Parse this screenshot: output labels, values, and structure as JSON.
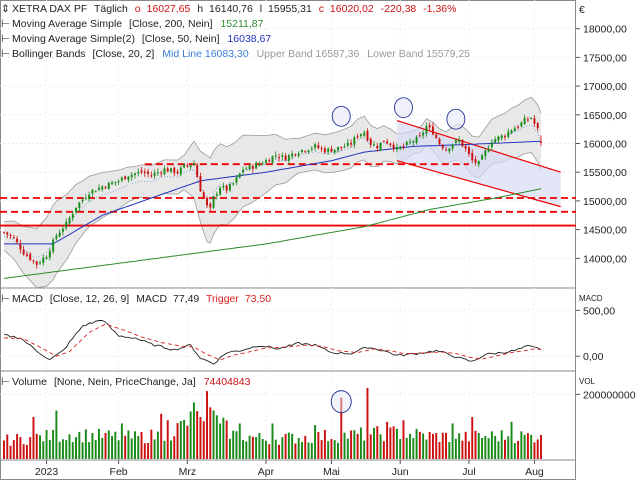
{
  "header": {
    "currency": "€",
    "price": {
      "prefix": "XETRA DAX PF",
      "period": "Täglich",
      "o_label": "o",
      "o": "16027,65",
      "h_label": "h",
      "h": "16140,76",
      "l_label": "l",
      "l": "15955,31",
      "c_label": "c",
      "c": "16020,02",
      "change": "-220,38",
      "change_pct": "-1,36%"
    },
    "ma200": {
      "label": "Moving Average Simple",
      "params": "[Close, 200, Nein]",
      "value": "15211,87"
    },
    "ma50": {
      "label": "Moving Average Simple(2)",
      "params": "[Close, 50, Nein]",
      "value": "16038,67"
    },
    "bb": {
      "label": "Bollinger Bands",
      "params": "[Close, 20, 2]",
      "mid": "Mid Line 16083,30",
      "upper": "Upper Band 16587,36",
      "lower": "Lower Band 15579,25"
    },
    "macd": {
      "label": "MACD",
      "params": "[Close, 12, 26, 9]",
      "macd_name": "MACD",
      "macd_value": "77,49",
      "trigger_name": "Trigger",
      "trigger_value": "73,50",
      "axis_label": "MACD"
    },
    "volume": {
      "label": "Volume",
      "params": "[None, Nein, PriceChange, Ja]",
      "value": "74404843",
      "axis_label": "VOL"
    }
  },
  "colors": {
    "up": "#1a8a1a",
    "down": "#cc1111",
    "ma200": "#2e8b2e",
    "ma50": "#2233bb",
    "bb_mid": "#3b7dd8",
    "bb_band": "#9a9a9a",
    "band_fill": "#e4e4e4",
    "channel_fill": "#d7dcf4",
    "support": "#ee0000",
    "macd": "#222222",
    "trigger": "#dd2222"
  },
  "chart_data": [
    {
      "type": "candlestick",
      "title": "XETRA DAX PF",
      "ylim": [
        13500,
        18500
      ],
      "yticks": [
        "18000,00",
        "17500,00",
        "17000,00",
        "16500,00",
        "16000,00",
        "15500,00",
        "15000,00",
        "14500,00",
        "14000,00"
      ],
      "ytick_values": [
        18000,
        17500,
        17000,
        16500,
        16000,
        15500,
        15000,
        14500,
        14000
      ],
      "x_labels": [
        "2023",
        "Feb",
        "Mrz",
        "Apr",
        "Mai",
        "Jun",
        "Jul",
        "Aug"
      ],
      "x_label_index": [
        13,
        35,
        56,
        80,
        100,
        121,
        142,
        162
      ],
      "n_points": 165,
      "anchors": [
        [
          0,
          14450
        ],
        [
          3,
          14350
        ],
        [
          6,
          14100
        ],
        [
          10,
          13900
        ],
        [
          13,
          14050
        ],
        [
          16,
          14400
        ],
        [
          19,
          14600
        ],
        [
          22,
          14900
        ],
        [
          26,
          15150
        ],
        [
          30,
          15250
        ],
        [
          35,
          15350
        ],
        [
          38,
          15450
        ],
        [
          42,
          15500
        ],
        [
          45,
          15450
        ],
        [
          49,
          15550
        ],
        [
          53,
          15500
        ],
        [
          55,
          15600
        ],
        [
          58,
          15650
        ],
        [
          60,
          15200
        ],
        [
          62,
          14900
        ],
        [
          63,
          14850
        ],
        [
          64,
          15050
        ],
        [
          66,
          15250
        ],
        [
          68,
          15200
        ],
        [
          70,
          15300
        ],
        [
          73,
          15550
        ],
        [
          76,
          15600
        ],
        [
          80,
          15700
        ],
        [
          83,
          15800
        ],
        [
          86,
          15750
        ],
        [
          89,
          15850
        ],
        [
          92,
          15900
        ],
        [
          95,
          15950
        ],
        [
          98,
          15880
        ],
        [
          101,
          15900
        ],
        [
          104,
          15950
        ],
        [
          106,
          16000
        ],
        [
          108,
          16150
        ],
        [
          110,
          16200
        ],
        [
          112,
          16000
        ],
        [
          114,
          15950
        ],
        [
          116,
          16050
        ],
        [
          118,
          16000
        ],
        [
          120,
          15900
        ],
        [
          122,
          15950
        ],
        [
          125,
          16050
        ],
        [
          127,
          16100
        ],
        [
          129,
          16300
        ],
        [
          131,
          16200
        ],
        [
          133,
          16000
        ],
        [
          135,
          15900
        ],
        [
          137,
          16000
        ],
        [
          139,
          16050
        ],
        [
          141,
          15900
        ],
        [
          143,
          15700
        ],
        [
          145,
          15650
        ],
        [
          147,
          15850
        ],
        [
          149,
          16050
        ],
        [
          151,
          16100
        ],
        [
          153,
          16150
        ],
        [
          155,
          16250
        ],
        [
          157,
          16300
        ],
        [
          159,
          16400
        ],
        [
          161,
          16450
        ],
        [
          163,
          16240
        ],
        [
          164,
          16020
        ]
      ],
      "ma200_anchors": [
        [
          0,
          13650
        ],
        [
          40,
          13950
        ],
        [
          80,
          14250
        ],
        [
          110,
          14550
        ],
        [
          130,
          14850
        ],
        [
          150,
          15050
        ],
        [
          164,
          15212
        ]
      ],
      "ma50_anchors": [
        [
          0,
          14250
        ],
        [
          15,
          14250
        ],
        [
          30,
          14750
        ],
        [
          45,
          15050
        ],
        [
          60,
          15350
        ],
        [
          80,
          15500
        ],
        [
          100,
          15700
        ],
        [
          110,
          15850
        ],
        [
          125,
          15950
        ],
        [
          140,
          15980
        ],
        [
          164,
          16039
        ]
      ],
      "bb_width_anchors": [
        [
          0,
          250
        ],
        [
          15,
          650
        ],
        [
          25,
          450
        ],
        [
          40,
          280
        ],
        [
          55,
          300
        ],
        [
          62,
          750
        ],
        [
          75,
          600
        ],
        [
          90,
          300
        ],
        [
          110,
          380
        ],
        [
          125,
          200
        ],
        [
          140,
          320
        ],
        [
          164,
          505
        ]
      ],
      "support_lines": [
        {
          "value": 15640,
          "from": 43,
          "to": 142,
          "style": "dashed"
        },
        {
          "value": 15050,
          "from": 0,
          "to": 164,
          "style": "dashed"
        },
        {
          "value": 14810,
          "from": 0,
          "to": 164,
          "style": "dashed"
        },
        {
          "value": 14570,
          "from": 0,
          "to": 164,
          "style": "solid"
        }
      ],
      "channel": {
        "from": 120,
        "top_start": 16400,
        "bottom_start": 15700,
        "to": 170,
        "top_end": 15500,
        "bottom_end": 14900
      },
      "highlight_circles": [
        {
          "index": 103,
          "value": 16300
        },
        {
          "index": 122,
          "value": 16450
        },
        {
          "index": 138,
          "value": 16250
        }
      ]
    },
    {
      "type": "line",
      "title": "MACD",
      "ylim": [
        -150,
        700
      ],
      "yticks": [
        "500,00",
        "0,00"
      ],
      "ytick_values": [
        500,
        0
      ],
      "series": [
        {
          "name": "MACD",
          "anchors": [
            [
              0,
              230
            ],
            [
              5,
              200
            ],
            [
              10,
              60
            ],
            [
              14,
              -40
            ],
            [
              18,
              60
            ],
            [
              24,
              330
            ],
            [
              30,
              400
            ],
            [
              35,
              220
            ],
            [
              40,
              200
            ],
            [
              45,
              130
            ],
            [
              52,
              70
            ],
            [
              57,
              120
            ],
            [
              60,
              -20
            ],
            [
              64,
              -80
            ],
            [
              68,
              40
            ],
            [
              72,
              60
            ],
            [
              78,
              120
            ],
            [
              84,
              80
            ],
            [
              90,
              140
            ],
            [
              95,
              120
            ],
            [
              100,
              40
            ],
            [
              106,
              30
            ],
            [
              111,
              100
            ],
            [
              116,
              60
            ],
            [
              120,
              10
            ],
            [
              124,
              20
            ],
            [
              128,
              40
            ],
            [
              132,
              60
            ],
            [
              136,
              20
            ],
            [
              139,
              -20
            ],
            [
              143,
              -60
            ],
            [
              147,
              20
            ],
            [
              152,
              40
            ],
            [
              156,
              60
            ],
            [
              160,
              110
            ],
            [
              164,
              77
            ]
          ]
        },
        {
          "name": "Trigger",
          "anchors": [
            [
              0,
              200
            ],
            [
              6,
              190
            ],
            [
              12,
              80
            ],
            [
              16,
              0
            ],
            [
              20,
              50
            ],
            [
              26,
              260
            ],
            [
              31,
              350
            ],
            [
              37,
              280
            ],
            [
              42,
              210
            ],
            [
              48,
              150
            ],
            [
              54,
              110
            ],
            [
              58,
              100
            ],
            [
              62,
              20
            ],
            [
              66,
              -40
            ],
            [
              70,
              10
            ],
            [
              74,
              40
            ],
            [
              80,
              90
            ],
            [
              86,
              100
            ],
            [
              92,
              120
            ],
            [
              97,
              110
            ],
            [
              102,
              60
            ],
            [
              108,
              40
            ],
            [
              113,
              80
            ],
            [
              118,
              60
            ],
            [
              122,
              30
            ],
            [
              126,
              30
            ],
            [
              130,
              40
            ],
            [
              134,
              45
            ],
            [
              138,
              30
            ],
            [
              142,
              -10
            ],
            [
              146,
              -30
            ],
            [
              150,
              0
            ],
            [
              155,
              40
            ],
            [
              159,
              60
            ],
            [
              162,
              80
            ],
            [
              164,
              74
            ]
          ]
        }
      ]
    },
    {
      "type": "bar",
      "title": "Volume",
      "ylim": [
        0,
        260000000
      ],
      "yticks": [
        "200000000"
      ],
      "ytick_values": [
        200000000
      ],
      "volume_anchors": [
        [
          0,
          60000000
        ],
        [
          10,
          70000000
        ],
        [
          20,
          80000000
        ],
        [
          30,
          75000000
        ],
        [
          40,
          70000000
        ],
        [
          50,
          80000000
        ],
        [
          56,
          120000000
        ],
        [
          62,
          150000000
        ],
        [
          70,
          80000000
        ],
        [
          80,
          65000000
        ],
        [
          90,
          70000000
        ],
        [
          100,
          75000000
        ],
        [
          110,
          80000000
        ],
        [
          120,
          85000000
        ],
        [
          130,
          75000000
        ],
        [
          140,
          70000000
        ],
        [
          150,
          75000000
        ],
        [
          164,
          74404843
        ]
      ],
      "volume_spikes": [
        [
          9,
          130000000
        ],
        [
          16,
          150000000
        ],
        [
          36,
          110000000
        ],
        [
          48,
          140000000
        ],
        [
          50,
          120000000
        ],
        [
          58,
          175000000
        ],
        [
          60,
          130000000
        ],
        [
          62,
          210000000
        ],
        [
          63,
          160000000
        ],
        [
          66,
          110000000
        ],
        [
          72,
          110000000
        ],
        [
          82,
          110000000
        ],
        [
          95,
          105000000
        ],
        [
          103,
          190000000
        ],
        [
          111,
          220000000
        ],
        [
          117,
          115000000
        ],
        [
          122,
          120000000
        ],
        [
          137,
          110000000
        ],
        [
          143,
          130000000
        ],
        [
          155,
          115000000
        ]
      ],
      "highlight_circles": [
        {
          "index": 103,
          "value": 190000000
        }
      ]
    }
  ]
}
